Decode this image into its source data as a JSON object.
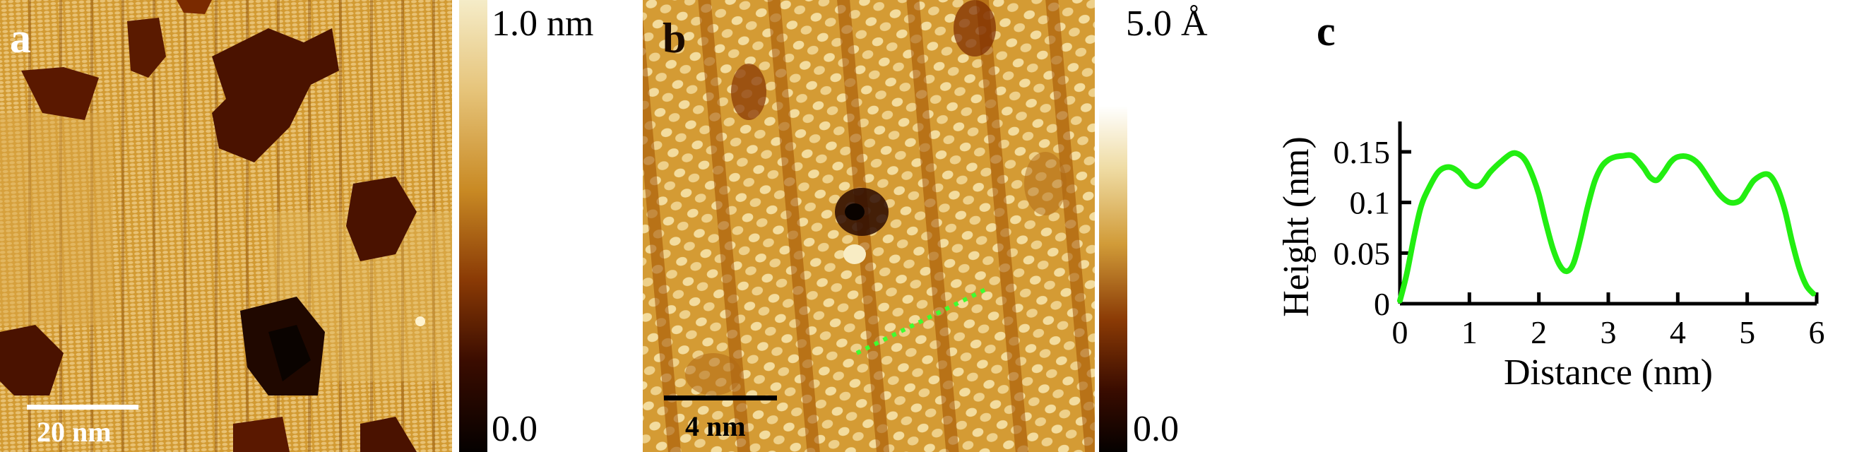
{
  "panel_a": {
    "letter": "a",
    "scalebar_label": "20 nm",
    "colorbar": {
      "max_label": "1.0 nm",
      "min_label": "0.0"
    }
  },
  "panel_b": {
    "letter": "b",
    "scalebar_label": "4 nm",
    "colorbar": {
      "max_label": "5.0 Å",
      "min_label": "0.0"
    }
  },
  "panel_c": {
    "letter": "c"
  },
  "colors": {
    "stm_dark": "#1a0a00",
    "stm_mid": "#c8891f",
    "stm_light": "#f1dfaa",
    "profile_line": "#22ee11",
    "scalebar_a": "#ffffff",
    "scalebar_b": "#000000"
  },
  "chart_data": {
    "type": "line",
    "title": "",
    "xlabel": "Distance (nm)",
    "ylabel": "Height (nm)",
    "xlim": [
      0,
      6
    ],
    "ylim": [
      0,
      0.18
    ],
    "x_ticks": [
      0,
      1,
      2,
      3,
      4,
      5,
      6
    ],
    "x_tick_labels": [
      "0",
      "1",
      "2",
      "3",
      "4",
      "5",
      "6"
    ],
    "y_ticks": [
      0,
      0.05,
      0.1,
      0.15
    ],
    "y_tick_labels": [
      "0",
      "0.05",
      "0.1",
      "0.15"
    ],
    "grid": false,
    "series": [
      {
        "x": [
          0,
          0.1,
          0.2,
          0.3,
          0.4,
          0.55,
          0.7,
          0.85,
          1.0,
          1.15,
          1.3,
          1.45,
          1.6,
          1.7,
          1.8,
          1.9,
          2.0,
          2.1,
          2.2,
          2.3,
          2.4,
          2.5,
          2.6,
          2.7,
          2.8,
          2.9,
          3.0,
          3.1,
          3.2,
          3.35,
          3.5,
          3.6,
          3.7,
          3.8,
          3.9,
          4.0,
          4.15,
          4.3,
          4.45,
          4.6,
          4.75,
          4.9,
          5.0,
          5.1,
          5.25,
          5.35,
          5.45,
          5.55,
          5.65,
          5.75,
          5.85,
          5.95
        ],
        "y": [
          0.003,
          0.03,
          0.065,
          0.095,
          0.112,
          0.13,
          0.135,
          0.13,
          0.118,
          0.117,
          0.13,
          0.14,
          0.148,
          0.148,
          0.142,
          0.128,
          0.108,
          0.08,
          0.055,
          0.038,
          0.032,
          0.04,
          0.065,
          0.095,
          0.12,
          0.135,
          0.142,
          0.145,
          0.146,
          0.146,
          0.135,
          0.125,
          0.122,
          0.13,
          0.14,
          0.145,
          0.145,
          0.138,
          0.123,
          0.108,
          0.1,
          0.102,
          0.112,
          0.122,
          0.128,
          0.125,
          0.112,
          0.09,
          0.06,
          0.035,
          0.018,
          0.01
        ]
      }
    ]
  }
}
